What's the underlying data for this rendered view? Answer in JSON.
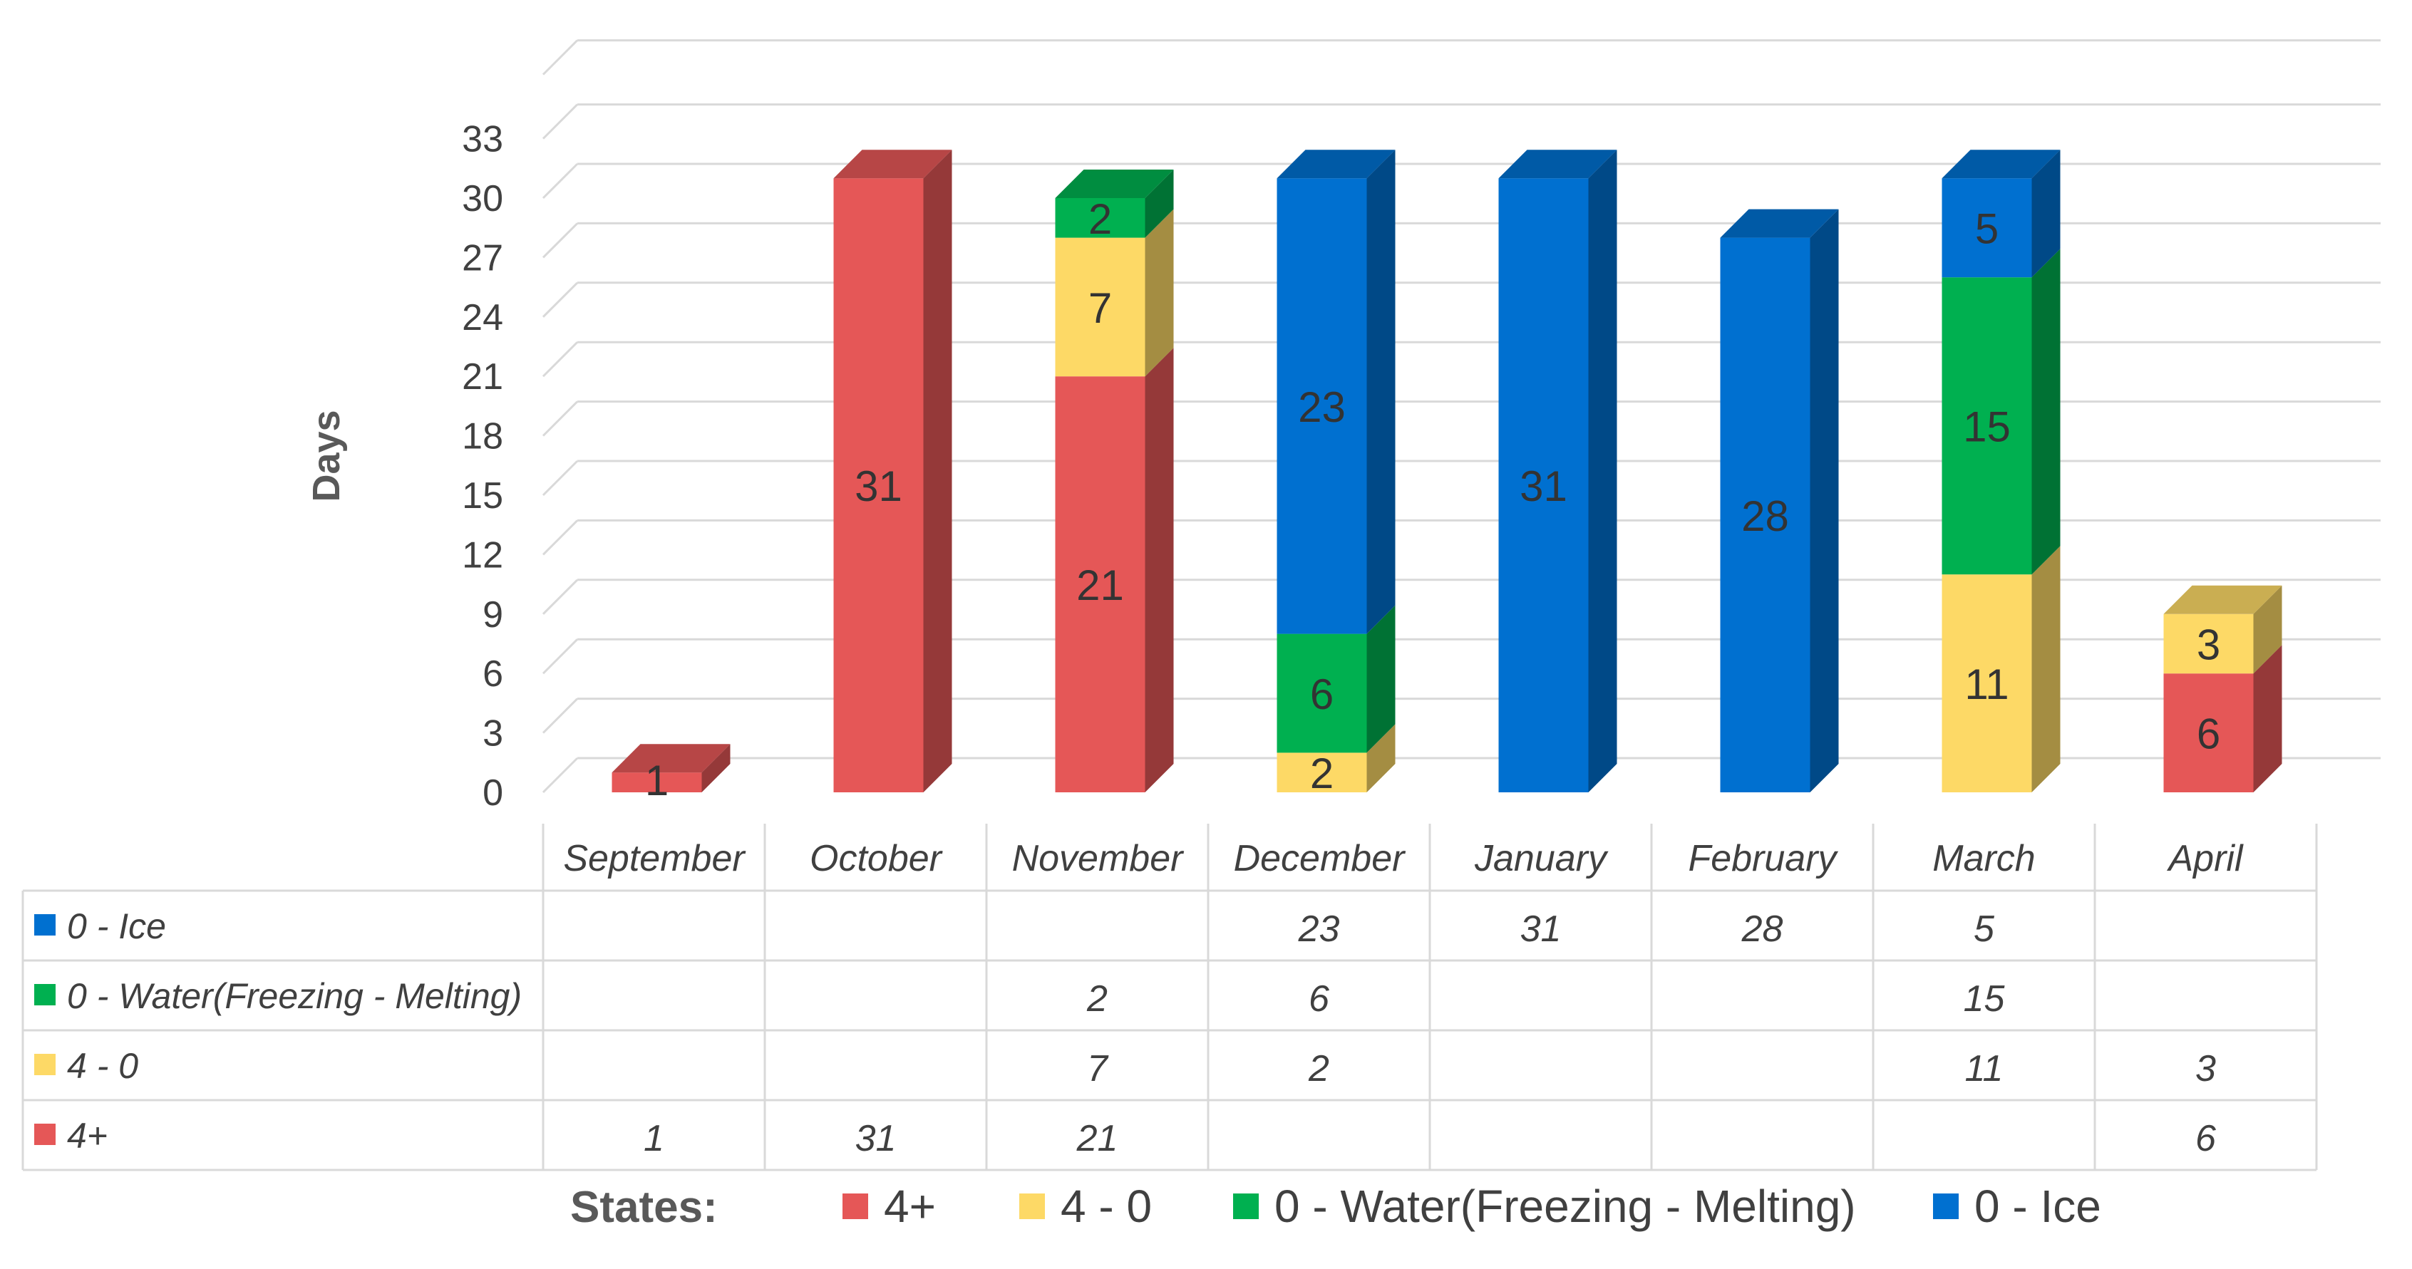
{
  "chart_data": {
    "type": "bar",
    "stacked": true,
    "style": "3d-column",
    "ylabel": "Days",
    "ylim": [
      0,
      33
    ],
    "yticks": [
      "0",
      "3",
      "6",
      "9",
      "12",
      "15",
      "18",
      "21",
      "24",
      "27",
      "30",
      "33"
    ],
    "categories": [
      "September",
      "October",
      "November",
      "December",
      "January",
      "February",
      "March",
      "April"
    ],
    "series": [
      {
        "name": "4+",
        "color": "#E55757",
        "values": [
          1,
          31,
          21,
          null,
          null,
          null,
          null,
          6
        ]
      },
      {
        "name": "4 - 0",
        "color": "#FDD966",
        "values": [
          null,
          null,
          7,
          2,
          null,
          null,
          11,
          3
        ]
      },
      {
        "name": "0 - Water(Freezing - Melting)",
        "color": "#00B050",
        "values": [
          null,
          null,
          2,
          6,
          null,
          null,
          15,
          null
        ]
      },
      {
        "name": "0 - Ice",
        "color": "#0070D0",
        "values": [
          null,
          null,
          null,
          23,
          31,
          28,
          5,
          null
        ]
      }
    ],
    "data_table": {
      "rows": [
        {
          "label": "0 - Ice",
          "cells": [
            "",
            "",
            "",
            "23",
            "31",
            "28",
            "5",
            ""
          ]
        },
        {
          "label": "0 - Water(Freezing - Melting)",
          "cells": [
            "",
            "",
            "2",
            "6",
            "",
            "",
            "15",
            ""
          ]
        },
        {
          "label": "4 - 0",
          "cells": [
            "",
            "",
            "7",
            "2",
            "",
            "",
            "11",
            "3"
          ]
        },
        {
          "label": "4+",
          "cells": [
            "1",
            "31",
            "21",
            "",
            "",
            "",
            "",
            "6"
          ]
        }
      ]
    },
    "legend": {
      "title": "States:",
      "position": "bottom",
      "items": [
        "4+",
        "4 - 0",
        "0 - Water(Freezing - Melting)",
        "0 - Ice"
      ]
    },
    "grid": true
  }
}
